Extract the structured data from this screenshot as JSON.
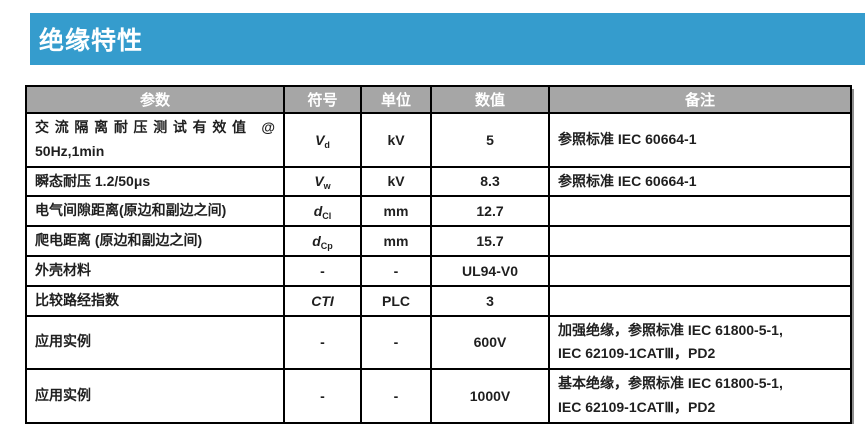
{
  "colors": {
    "banner_blue": "#359ccd",
    "header_gray": "#a6a6a6",
    "border_black": "#000000",
    "text_dark": "#1f1f1f",
    "header_text": "#ffffff"
  },
  "banner": {
    "title": "绝缘特性"
  },
  "table": {
    "headers": [
      "参数",
      "符号",
      "单位",
      "数值",
      "备注"
    ],
    "rows": [
      {
        "param_line1": "交流隔离耐压测试有效值 @",
        "param_line2": "50Hz,1min",
        "symbol": "V",
        "symbol_sub": "d",
        "unit": "kV",
        "value": "5",
        "remark": "参照标准 IEC 60664-1"
      },
      {
        "param": "瞬态耐压 1.2/50μs",
        "symbol": "V",
        "symbol_sub": "w",
        "unit": "kV",
        "value": "8.3",
        "remark": "参照标准 IEC 60664-1"
      },
      {
        "param": "电气间隙距离(原边和副边之间)",
        "symbol": "d",
        "symbol_sub": "Cl",
        "unit": "mm",
        "value": "12.7",
        "remark": ""
      },
      {
        "param": "爬电距离 (原边和副边之间)",
        "symbol": "d",
        "symbol_sub": "Cp",
        "unit": "mm",
        "value": "15.7",
        "remark": ""
      },
      {
        "param": "外壳材料",
        "symbol": "-",
        "unit": "-",
        "value": "UL94-V0",
        "remark": ""
      },
      {
        "param": "比较路经指数",
        "symbol": "CTI",
        "unit": "PLC",
        "value": "3",
        "remark": ""
      },
      {
        "param": "应用实例",
        "symbol": "-",
        "unit": "-",
        "value": "600V",
        "remark_line1": "加强绝缘，参照标准 IEC 61800-5-1,",
        "remark_line2": "IEC 62109-1CATⅢ，PD2"
      },
      {
        "param": "应用实例",
        "symbol": "-",
        "unit": "-",
        "value": "1000V",
        "remark_line1": "基本绝缘，参照标准 IEC 61800-5-1,",
        "remark_line2": "IEC 62109-1CATⅢ，PD2"
      }
    ]
  }
}
